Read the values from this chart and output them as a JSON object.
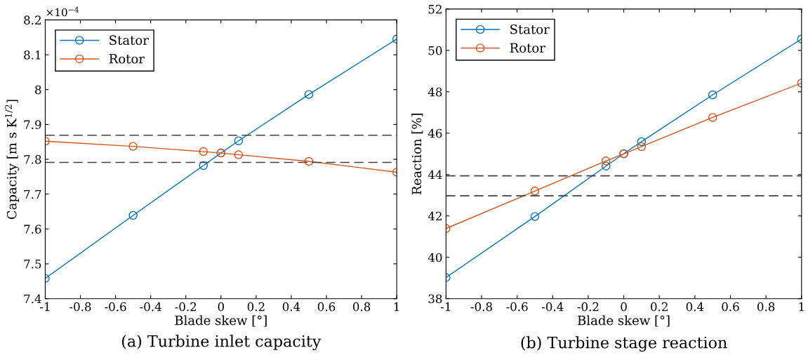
{
  "chart_data": [
    {
      "type": "line",
      "xlabel": "Blade skew [°]",
      "ylabel": "Capacity [m s K$^{1/2}$]",
      "annotations": [
        "×10$^{−4}$",
        "(a) Turbine inlet capacity"
      ],
      "x": [
        -1,
        -0.5,
        -0.1,
        0,
        0.1,
        0.5,
        1
      ],
      "series": [
        {
          "name": "Stator",
          "color": "#0072bd",
          "values": [
            7.458,
            7.639,
            7.782,
            7.818,
            7.853,
            7.986,
            8.145
          ]
        },
        {
          "name": "Rotor",
          "color": "#d95319",
          "values": [
            7.852,
            7.837,
            7.822,
            7.818,
            7.813,
            7.794,
            7.763
          ]
        }
      ],
      "ref_lines": [
        {
          "axis": "y",
          "value": 7.869,
          "color": "#404040",
          "line_style": "dashed"
        },
        {
          "axis": "y",
          "value": 7.791,
          "color": "#404040",
          "line_style": "dashed"
        }
      ],
      "xlim": [
        -1,
        1
      ],
      "xticks": [
        -1,
        -0.8,
        -0.6,
        -0.4,
        -0.2,
        0,
        0.2,
        0.4,
        0.6,
        0.8,
        1
      ],
      "ylim": [
        7.4,
        8.2
      ],
      "yticks": [
        7.4,
        7.5,
        7.6,
        7.7,
        7.8,
        7.9,
        8,
        8.1,
        8.2
      ],
      "grid": false,
      "legend": "top left",
      "marker": "circle",
      "line_style": "solid"
    },
    {
      "type": "line",
      "xlabel": "Blade skew [°]",
      "ylabel": "Reaction [%]",
      "annotations": [
        "(b) Turbine stage reaction"
      ],
      "x": [
        -1,
        -0.5,
        -0.1,
        0,
        0.1,
        0.5,
        1
      ],
      "series": [
        {
          "name": "Stator",
          "color": "#0072bd",
          "values": [
            39.02,
            41.97,
            44.41,
            45.01,
            45.59,
            47.85,
            50.55
          ]
        },
        {
          "name": "Rotor",
          "color": "#d95319",
          "values": [
            41.39,
            43.2,
            44.66,
            45.0,
            45.35,
            46.76,
            48.42
          ]
        }
      ],
      "ref_lines": [
        {
          "axis": "y",
          "value": 43.94,
          "color": "#404040",
          "line_style": "dashed"
        },
        {
          "axis": "y",
          "value": 42.97,
          "color": "#404040",
          "line_style": "dashed"
        }
      ],
      "xlim": [
        -1,
        1
      ],
      "xticks": [
        -1,
        -0.8,
        -0.6,
        -0.4,
        -0.2,
        0,
        0.2,
        0.4,
        0.6,
        0.8,
        1
      ],
      "ylim": [
        38,
        52
      ],
      "yticks": [
        38,
        40,
        42,
        44,
        46,
        48,
        50,
        52
      ],
      "grid": false,
      "legend": "top left",
      "marker": "circle",
      "line_style": "solid"
    }
  ]
}
